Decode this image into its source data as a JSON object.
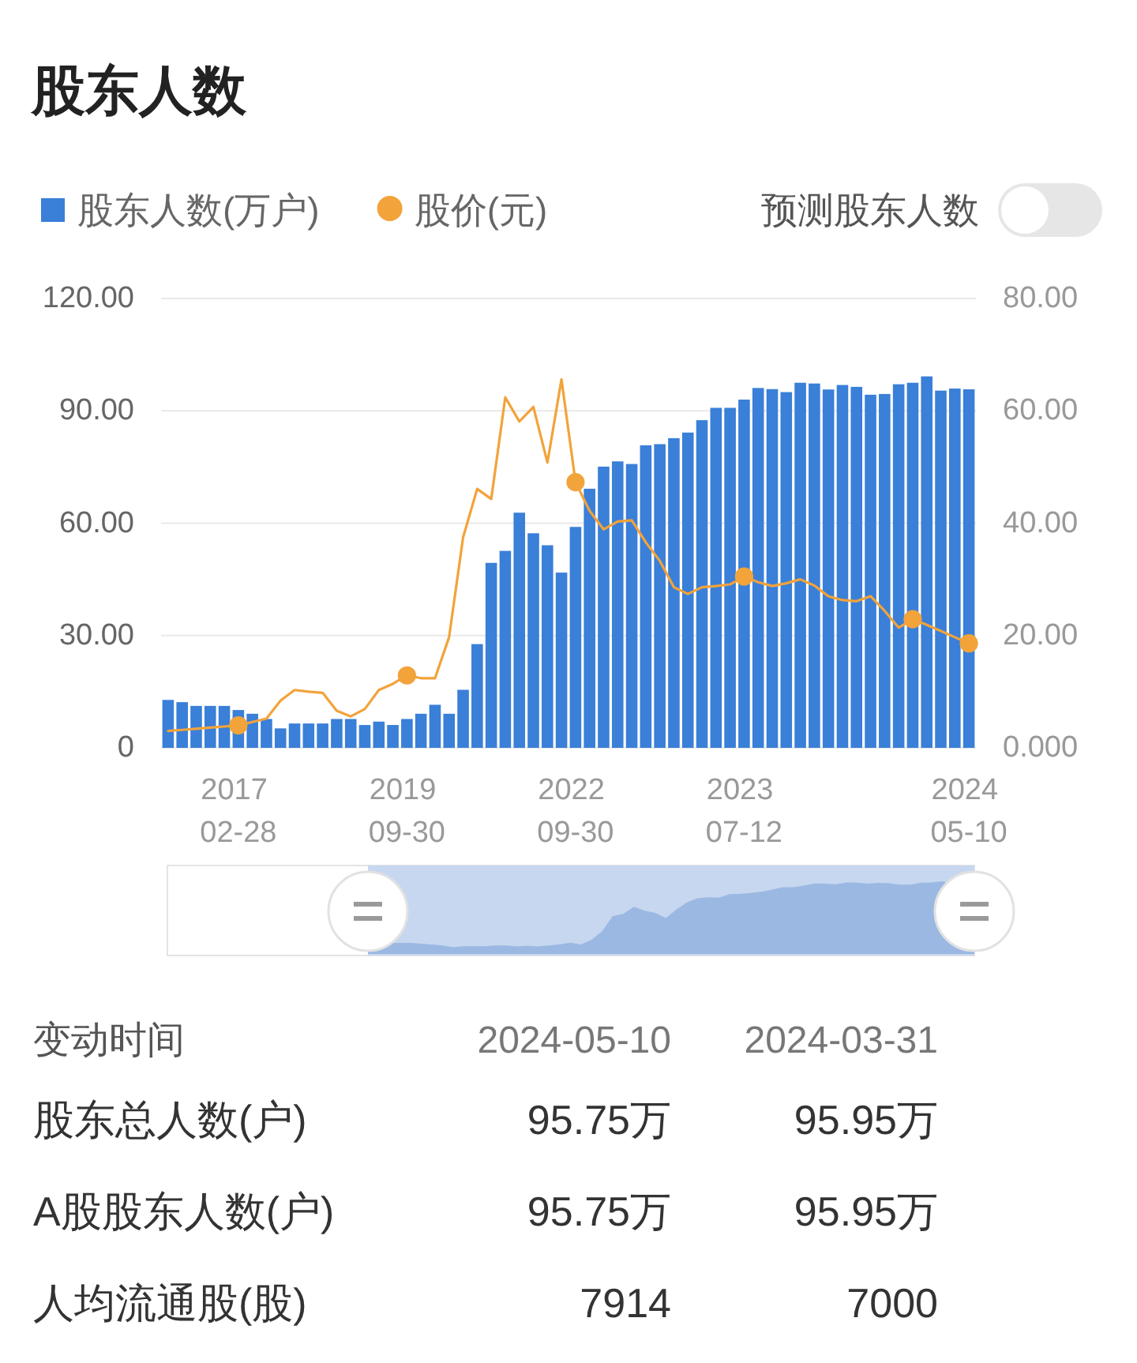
{
  "chart_data": [
    {
      "type": "bar",
      "title": "股东人数",
      "categories": [
        null,
        null,
        null,
        null,
        null,
        "2017\n02-28",
        null,
        null,
        null,
        null,
        null,
        null,
        null,
        null,
        null,
        null,
        null,
        "2019\n09-30",
        null,
        null,
        null,
        null,
        null,
        null,
        null,
        null,
        null,
        null,
        null,
        "2022\n09-30",
        null,
        null,
        null,
        null,
        null,
        null,
        null,
        null,
        null,
        null,
        null,
        "2023\n07-12",
        null,
        null,
        null,
        null,
        null,
        null,
        null,
        null,
        null,
        null,
        null,
        null,
        null,
        null,
        null,
        "2024\n05-10"
      ],
      "series": [
        {
          "name": "股东人数(万户)",
          "type": "bar",
          "color": "#3a7fd8",
          "values": [
            12.8,
            12.2,
            11.2,
            11.2,
            11.2,
            10.1,
            9.1,
            7.7,
            5.2,
            6.5,
            6.5,
            6.5,
            7.7,
            7.7,
            6.1,
            7.0,
            6.1,
            7.7,
            9.1,
            11.5,
            9.1,
            15.5,
            27.7,
            49.4,
            52.6,
            62.8,
            57.3,
            54.1,
            46.8,
            59.0,
            69.2,
            75.1,
            76.5,
            75.8,
            80.8,
            81.1,
            82.7,
            84.2,
            87.5,
            90.8,
            90.8,
            93.0,
            96.1,
            95.8,
            95.0,
            97.5,
            97.3,
            95.7,
            96.9,
            96.4,
            94.3,
            94.5,
            97.1,
            97.5,
            99.2,
            95.4,
            95.95,
            95.75
          ]
        },
        {
          "name": "股价(元)",
          "type": "line",
          "axis": "y2",
          "color": "#f2a33a",
          "values": [
            3.0,
            3.2,
            3.4,
            3.6,
            3.8,
            4.0,
            4.6,
            5.2,
            8.4,
            10.3,
            10.0,
            9.8,
            6.6,
            5.6,
            6.9,
            10.3,
            11.4,
            12.9,
            12.4,
            12.4,
            19.7,
            37.5,
            46.1,
            44.3,
            62.4,
            58.1,
            60.7,
            50.8,
            65.6,
            47.3,
            42.2,
            38.9,
            40.3,
            40.5,
            36.6,
            33.3,
            28.6,
            27.4,
            28.6,
            28.8,
            29.1,
            30.5,
            29.5,
            28.8,
            29.3,
            30.0,
            28.9,
            27.0,
            26.3,
            26.1,
            27.0,
            24.4,
            21.4,
            22.9,
            21.9,
            20.8,
            19.7,
            18.6
          ]
        },
        {
          "type": "scatter",
          "axis": "y2",
          "color": "#f2a33a",
          "marker": "circle",
          "values": [
            null,
            null,
            null,
            null,
            null,
            4.0,
            null,
            null,
            null,
            null,
            null,
            null,
            null,
            null,
            null,
            null,
            null,
            12.9,
            null,
            null,
            null,
            null,
            null,
            null,
            null,
            null,
            null,
            null,
            null,
            47.3,
            null,
            null,
            null,
            null,
            null,
            null,
            null,
            null,
            null,
            null,
            null,
            30.5,
            null,
            null,
            null,
            null,
            null,
            null,
            null,
            null,
            null,
            null,
            null,
            22.9,
            null,
            null,
            null,
            18.6
          ]
        }
      ],
      "ylim": [
        0,
        120
      ],
      "yticks": [
        0,
        {
          "value": 30,
          "label": "30.00"
        },
        {
          "value": 60,
          "label": "60.00"
        },
        {
          "value": 90,
          "label": "90.00"
        },
        {
          "value": 120,
          "label": "120.00"
        }
      ],
      "y2lim": [
        0,
        80
      ],
      "y2ticks": [
        {
          "value": 0,
          "label": "0.000"
        },
        {
          "value": 20,
          "label": "20.00"
        },
        {
          "value": 40,
          "label": "40.00"
        },
        {
          "value": 60,
          "label": "60.00"
        },
        {
          "value": 80,
          "label": "80.00"
        }
      ],
      "grid": "y",
      "legend": "top left",
      "annotations": [
        "预测股东人数"
      ]
    },
    {
      "type": "other",
      "annotations": [
        "变动时间",
        "2024-05-10",
        "2024-03-31",
        "股东总人数(户)",
        "95.75万",
        "95.95万",
        "A股股东人数(户)",
        "95.75万",
        "95.95万",
        "人均流通股(股)",
        "7914",
        "7000"
      ]
    }
  ]
}
